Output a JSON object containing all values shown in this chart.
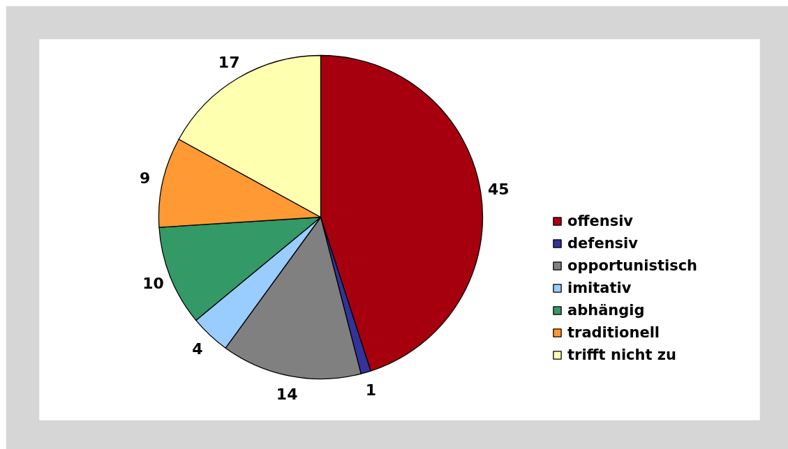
{
  "chart_data": {
    "type": "pie",
    "categories": [
      "offensiv",
      "defensiv",
      "opportunistisch",
      "imitativ",
      "abhängig",
      "traditionell",
      "trifft nicht zu"
    ],
    "values": [
      45,
      1,
      14,
      4,
      10,
      9,
      17
    ],
    "colors": [
      "#a6000f",
      "#333399",
      "#808080",
      "#99ccff",
      "#339966",
      "#ff9933",
      "#ffffb0"
    ],
    "data_labels": true,
    "legend": "right"
  }
}
